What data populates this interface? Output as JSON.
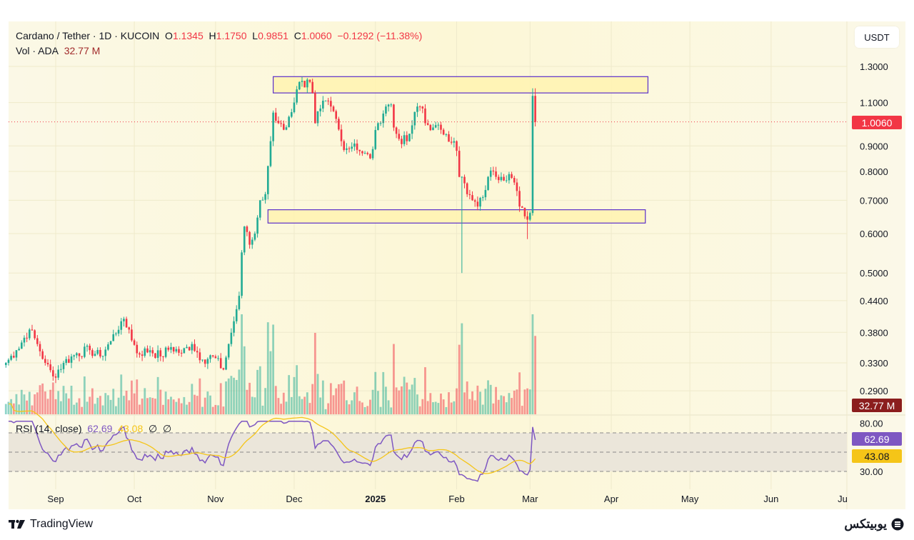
{
  "header": {
    "symbol": "Cardano / Tether · 1D · KUCOIN",
    "open_label": "O",
    "open": "1.1345",
    "high_label": "H",
    "high": "1.1750",
    "low_label": "L",
    "low": "0.9851",
    "close_label": "C",
    "close": "1.0060",
    "change": "−0.1292 (−11.38%)",
    "vol_label": "Vol · ADA",
    "vol": "32.77 M"
  },
  "currency_button": "USDT",
  "rsi_legend": {
    "label": "RSI (14, close)",
    "rsi": "62.69",
    "ma": "43.08",
    "na1": "∅",
    "na2": "∅"
  },
  "price_tags": {
    "last": "1.0060",
    "volume": "32.77 M",
    "rsi": "62.69",
    "rsi_ma": "43.08"
  },
  "footer": {
    "brand": "TradingView",
    "partner": "یوبیتکس"
  },
  "colors": {
    "up": "#22ab94",
    "down": "#f23645",
    "rsi": "#7e57c2",
    "rsi_ma": "#f5c518",
    "zone_border": "#5b2fc9",
    "zone_fill": "#fff3b0",
    "background": "#fbf7da"
  },
  "chart_data": {
    "type": "candlestick",
    "scale": "log",
    "price_ticks": [
      "1.3000",
      "1.1000",
      "0.9000",
      "0.8000",
      "0.7000",
      "0.6000",
      "0.5000",
      "0.4400",
      "0.3800",
      "0.3300",
      "0.2900"
    ],
    "rsi_ticks": [
      "80.00",
      "30.00"
    ],
    "rsi_bands": [
      70,
      50,
      30
    ],
    "x_ticks": [
      {
        "label": "Sep",
        "date": "2024-09-01"
      },
      {
        "label": "Oct",
        "date": "2024-10-01"
      },
      {
        "label": "Nov",
        "date": "2024-11-01"
      },
      {
        "label": "Dec",
        "date": "2024-12-01"
      },
      {
        "label": "2025",
        "date": "2025-01-01",
        "bold": true
      },
      {
        "label": "Feb",
        "date": "2025-02-01"
      },
      {
        "label": "Mar",
        "date": "2025-03-01"
      },
      {
        "label": "Apr",
        "date": "2025-04-01"
      },
      {
        "label": "May",
        "date": "2025-05-01"
      },
      {
        "label": "Jun",
        "date": "2025-06-01"
      },
      {
        "label": "Ju",
        "date": "2025-07-01"
      }
    ],
    "last_price": 1.006,
    "zones": [
      {
        "from": "2024-11-23",
        "to": "2025-04-15",
        "low": 1.15,
        "high": 1.24
      },
      {
        "from": "2024-11-21",
        "to": "2025-04-14",
        "low": 0.63,
        "high": 0.67
      }
    ],
    "close_keyframes": [
      [
        "2024-08-13",
        0.33
      ],
      [
        "2024-08-17",
        0.35
      ],
      [
        "2024-08-22",
        0.385
      ],
      [
        "2024-08-25",
        0.36
      ],
      [
        "2024-08-28",
        0.33
      ],
      [
        "2024-08-31",
        0.31
      ],
      [
        "2024-09-04",
        0.33
      ],
      [
        "2024-09-09",
        0.345
      ],
      [
        "2024-09-14",
        0.35
      ],
      [
        "2024-09-18",
        0.34
      ],
      [
        "2024-09-22",
        0.365
      ],
      [
        "2024-09-26",
        0.4
      ],
      [
        "2024-09-29",
        0.385
      ],
      [
        "2024-10-02",
        0.345
      ],
      [
        "2024-10-07",
        0.35
      ],
      [
        "2024-10-11",
        0.34
      ],
      [
        "2024-10-15",
        0.355
      ],
      [
        "2024-10-19",
        0.345
      ],
      [
        "2024-10-23",
        0.36
      ],
      [
        "2024-10-27",
        0.335
      ],
      [
        "2024-10-31",
        0.34
      ],
      [
        "2024-11-04",
        0.32
      ],
      [
        "2024-11-06",
        0.36
      ],
      [
        "2024-11-08",
        0.4
      ],
      [
        "2024-11-10",
        0.45
      ],
      [
        "2024-11-11",
        0.55
      ],
      [
        "2024-11-12",
        0.62
      ],
      [
        "2024-11-14",
        0.57
      ],
      [
        "2024-11-16",
        0.6
      ],
      [
        "2024-11-18",
        0.7
      ],
      [
        "2024-11-20",
        0.72
      ],
      [
        "2024-11-21",
        0.82
      ],
      [
        "2024-11-22",
        0.92
      ],
      [
        "2024-11-23",
        1.05
      ],
      [
        "2024-11-25",
        1.0
      ],
      [
        "2024-11-27",
        0.97
      ],
      [
        "2024-11-29",
        1.03
      ],
      [
        "2024-12-01",
        1.1
      ],
      [
        "2024-12-03",
        1.21
      ],
      [
        "2024-12-05",
        1.18
      ],
      [
        "2024-12-07",
        1.21
      ],
      [
        "2024-12-08",
        1.15
      ],
      [
        "2024-12-09",
        1.0
      ],
      [
        "2024-12-11",
        1.07
      ],
      [
        "2024-12-13",
        1.11
      ],
      [
        "2024-12-15",
        1.08
      ],
      [
        "2024-12-17",
        1.02
      ],
      [
        "2024-12-19",
        0.92
      ],
      [
        "2024-12-21",
        0.89
      ],
      [
        "2024-12-24",
        0.91
      ],
      [
        "2024-12-27",
        0.87
      ],
      [
        "2024-12-30",
        0.85
      ],
      [
        "2025-01-02",
        1.0
      ],
      [
        "2025-01-05",
        1.08
      ],
      [
        "2025-01-07",
        1.09
      ],
      [
        "2025-01-08",
        0.98
      ],
      [
        "2025-01-10",
        0.93
      ],
      [
        "2025-01-13",
        0.92
      ],
      [
        "2025-01-15",
        0.99
      ],
      [
        "2025-01-17",
        1.08
      ],
      [
        "2025-01-19",
        1.07
      ],
      [
        "2025-01-20",
        1.0
      ],
      [
        "2025-01-23",
        0.98
      ],
      [
        "2025-01-26",
        0.97
      ],
      [
        "2025-01-28",
        0.95
      ],
      [
        "2025-01-31",
        0.92
      ],
      [
        "2025-02-01",
        0.88
      ],
      [
        "2025-02-02",
        0.78
      ],
      [
        "2025-02-03",
        0.78,
        0.5
      ],
      [
        "2025-02-05",
        0.72
      ],
      [
        "2025-02-07",
        0.7
      ],
      [
        "2025-02-09",
        0.68
      ],
      [
        "2025-02-11",
        0.71
      ],
      [
        "2025-02-13",
        0.78
      ],
      [
        "2025-02-15",
        0.8
      ],
      [
        "2025-02-18",
        0.78
      ],
      [
        "2025-02-21",
        0.79
      ],
      [
        "2025-02-23",
        0.76
      ],
      [
        "2025-02-25",
        0.68
      ],
      [
        "2025-02-27",
        0.65
      ],
      [
        "2025-02-28",
        0.64,
        0.585
      ],
      [
        "2025-03-01",
        0.66
      ],
      [
        "2025-03-02",
        1.1345,
        1.175
      ],
      [
        "2025-03-03",
        1.006
      ]
    ]
  }
}
